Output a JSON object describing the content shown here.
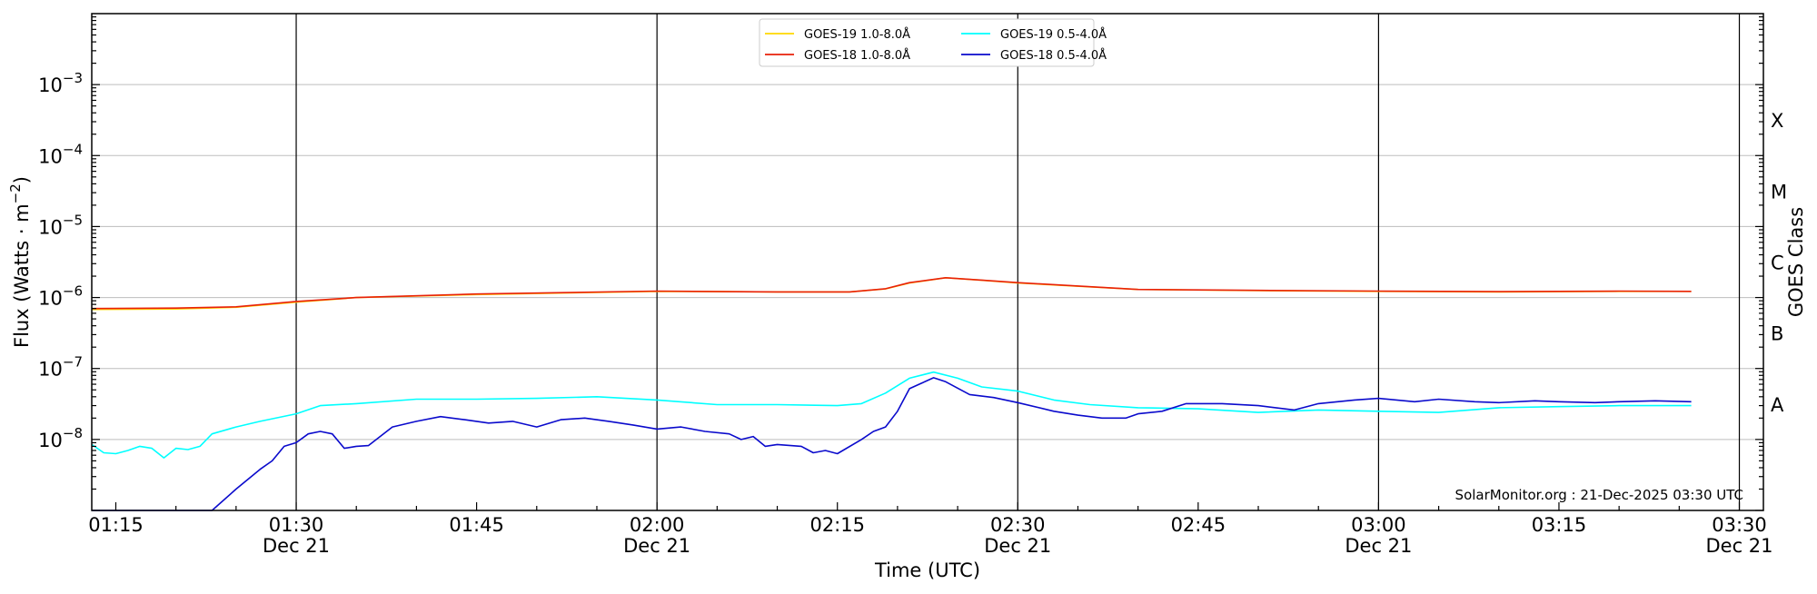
{
  "chart_data": {
    "type": "line",
    "xlabel": "Time (UTC)",
    "ylabel_base": "Flux (Watts · m",
    "ylabel_exp": "−2",
    "ylabel_close": ")",
    "y2label": "GOES Class",
    "yscale": "log",
    "ylim": [
      1e-09,
      0.01
    ],
    "xlim": [
      "2025-12-21T01:13",
      "2025-12-21T03:32"
    ],
    "grid": true,
    "legend_position": "top-center",
    "credit": "SolarMonitor.org : 21-Dec-2025 03:30 UTC",
    "y_ticks": [
      {
        "value": 0.001,
        "base": "10",
        "exp": "−3"
      },
      {
        "value": 0.0001,
        "base": "10",
        "exp": "−4"
      },
      {
        "value": 1e-05,
        "base": "10",
        "exp": "−5"
      },
      {
        "value": 1e-06,
        "base": "10",
        "exp": "−6"
      },
      {
        "value": 1e-07,
        "base": "10",
        "exp": "−7"
      },
      {
        "value": 1e-08,
        "base": "10",
        "exp": "−8"
      }
    ],
    "class_labels": [
      {
        "label": "X",
        "value": 0.000316
      },
      {
        "label": "M",
        "value": 3.16e-05
      },
      {
        "label": "C",
        "value": 3.16e-06
      },
      {
        "label": "B",
        "value": 3.16e-07
      },
      {
        "label": "A",
        "value": 3.16e-08
      }
    ],
    "x_ticks": [
      {
        "time": "01:15",
        "line1": "01:15",
        "line2": ""
      },
      {
        "time": "01:30",
        "line1": "01:30",
        "line2": "Dec 21"
      },
      {
        "time": "01:45",
        "line1": "01:45",
        "line2": ""
      },
      {
        "time": "02:00",
        "line1": "02:00",
        "line2": "Dec 21"
      },
      {
        "time": "02:15",
        "line1": "02:15",
        "line2": ""
      },
      {
        "time": "02:30",
        "line1": "02:30",
        "line2": "Dec 21"
      },
      {
        "time": "02:45",
        "line1": "02:45",
        "line2": ""
      },
      {
        "time": "03:00",
        "line1": "03:00",
        "line2": "Dec 21"
      },
      {
        "time": "03:15",
        "line1": "03:15",
        "line2": ""
      },
      {
        "time": "03:30",
        "line1": "03:30",
        "line2": "Dec 21"
      }
    ],
    "vlines": [
      "01:30",
      "02:00",
      "02:30",
      "03:00",
      "03:30"
    ],
    "series": [
      {
        "name": "GOES-19 1.0-8.0Å",
        "color": "#FFD700",
        "points": [
          [
            "01:13",
            6.8e-07
          ],
          [
            "01:20",
            6.9e-07
          ],
          [
            "01:25",
            7.3e-07
          ],
          [
            "01:30",
            8.6e-07
          ],
          [
            "01:35",
            1e-06
          ],
          [
            "01:45",
            1.1e-06
          ],
          [
            "02:00",
            1.22e-06
          ],
          [
            "02:10",
            1.2e-06
          ],
          [
            "02:16",
            1.2e-06
          ],
          [
            "02:19",
            1.32e-06
          ],
          [
            "02:21",
            1.6e-06
          ],
          [
            "02:24",
            1.9e-06
          ],
          [
            "02:27",
            1.75e-06
          ],
          [
            "02:30",
            1.6e-06
          ],
          [
            "02:40",
            1.3e-06
          ],
          [
            "02:50",
            1.25e-06
          ],
          [
            "03:00",
            1.22e-06
          ],
          [
            "03:10",
            1.2e-06
          ],
          [
            "03:20",
            1.22e-06
          ],
          [
            "03:26",
            1.22e-06
          ]
        ]
      },
      {
        "name": "GOES-18 1.0-8.0Å",
        "color": "#E8210A",
        "points": [
          [
            "01:13",
            7e-07
          ],
          [
            "01:20",
            7.1e-07
          ],
          [
            "01:25",
            7.4e-07
          ],
          [
            "01:30",
            8.8e-07
          ],
          [
            "01:35",
            1e-06
          ],
          [
            "01:45",
            1.12e-06
          ],
          [
            "02:00",
            1.23e-06
          ],
          [
            "02:10",
            1.2e-06
          ],
          [
            "02:16",
            1.2e-06
          ],
          [
            "02:19",
            1.33e-06
          ],
          [
            "02:21",
            1.62e-06
          ],
          [
            "02:24",
            1.9e-06
          ],
          [
            "02:27",
            1.76e-06
          ],
          [
            "02:30",
            1.62e-06
          ],
          [
            "02:40",
            1.3e-06
          ],
          [
            "02:50",
            1.26e-06
          ],
          [
            "03:00",
            1.23e-06
          ],
          [
            "03:10",
            1.21e-06
          ],
          [
            "03:20",
            1.23e-06
          ],
          [
            "03:26",
            1.22e-06
          ]
        ]
      },
      {
        "name": "GOES-19 0.5-4.0Å",
        "color": "#00FFFF",
        "points": [
          [
            "01:13",
            8.5e-09
          ],
          [
            "01:14",
            6.5e-09
          ],
          [
            "01:15",
            6.3e-09
          ],
          [
            "01:16",
            7e-09
          ],
          [
            "01:17",
            8e-09
          ],
          [
            "01:18",
            7.5e-09
          ],
          [
            "01:19",
            5.5e-09
          ],
          [
            "01:20",
            7.5e-09
          ],
          [
            "01:21",
            7.2e-09
          ],
          [
            "01:22",
            8e-09
          ],
          [
            "01:23",
            1.2e-08
          ],
          [
            "01:25",
            1.5e-08
          ],
          [
            "01:27",
            1.8e-08
          ],
          [
            "01:30",
            2.3e-08
          ],
          [
            "01:32",
            3e-08
          ],
          [
            "01:35",
            3.2e-08
          ],
          [
            "01:40",
            3.7e-08
          ],
          [
            "01:45",
            3.7e-08
          ],
          [
            "01:50",
            3.8e-08
          ],
          [
            "01:55",
            4e-08
          ],
          [
            "02:00",
            3.6e-08
          ],
          [
            "02:05",
            3.1e-08
          ],
          [
            "02:10",
            3.1e-08
          ],
          [
            "02:15",
            3e-08
          ],
          [
            "02:17",
            3.2e-08
          ],
          [
            "02:19",
            4.5e-08
          ],
          [
            "02:21",
            7.3e-08
          ],
          [
            "02:23",
            8.9e-08
          ],
          [
            "02:25",
            7.3e-08
          ],
          [
            "02:27",
            5.5e-08
          ],
          [
            "02:30",
            4.8e-08
          ],
          [
            "02:33",
            3.6e-08
          ],
          [
            "02:36",
            3.1e-08
          ],
          [
            "02:40",
            2.8e-08
          ],
          [
            "02:45",
            2.7e-08
          ],
          [
            "02:50",
            2.4e-08
          ],
          [
            "02:55",
            2.6e-08
          ],
          [
            "03:00",
            2.5e-08
          ],
          [
            "03:05",
            2.4e-08
          ],
          [
            "03:10",
            2.8e-08
          ],
          [
            "03:15",
            2.9e-08
          ],
          [
            "03:20",
            3e-08
          ],
          [
            "03:26",
            3e-08
          ]
        ]
      },
      {
        "name": "GOES-18 0.5-4.0Å",
        "color": "#0A0ACC",
        "points": [
          [
            "01:13",
            1e-09
          ],
          [
            "01:23",
            1e-09
          ],
          [
            "01:25",
            2e-09
          ],
          [
            "01:27",
            3.8e-09
          ],
          [
            "01:28",
            5e-09
          ],
          [
            "01:29",
            8e-09
          ],
          [
            "01:30",
            9e-09
          ],
          [
            "01:31",
            1.2e-08
          ],
          [
            "01:32",
            1.3e-08
          ],
          [
            "01:33",
            1.2e-08
          ],
          [
            "01:34",
            7.5e-09
          ],
          [
            "01:35",
            8e-09
          ],
          [
            "01:36",
            8.2e-09
          ],
          [
            "01:38",
            1.5e-08
          ],
          [
            "01:40",
            1.8e-08
          ],
          [
            "01:42",
            2.1e-08
          ],
          [
            "01:44",
            1.9e-08
          ],
          [
            "01:46",
            1.7e-08
          ],
          [
            "01:48",
            1.8e-08
          ],
          [
            "01:50",
            1.5e-08
          ],
          [
            "01:52",
            1.9e-08
          ],
          [
            "01:54",
            2e-08
          ],
          [
            "01:56",
            1.8e-08
          ],
          [
            "01:58",
            1.6e-08
          ],
          [
            "02:00",
            1.4e-08
          ],
          [
            "02:02",
            1.5e-08
          ],
          [
            "02:04",
            1.3e-08
          ],
          [
            "02:06",
            1.2e-08
          ],
          [
            "02:07",
            1e-08
          ],
          [
            "02:08",
            1.1e-08
          ],
          [
            "02:09",
            8e-09
          ],
          [
            "02:10",
            8.5e-09
          ],
          [
            "02:12",
            8e-09
          ],
          [
            "02:13",
            6.5e-09
          ],
          [
            "02:14",
            7e-09
          ],
          [
            "02:15",
            6.3e-09
          ],
          [
            "02:17",
            1e-08
          ],
          [
            "02:18",
            1.3e-08
          ],
          [
            "02:19",
            1.5e-08
          ],
          [
            "02:20",
            2.5e-08
          ],
          [
            "02:21",
            5.2e-08
          ],
          [
            "02:22",
            6.2e-08
          ],
          [
            "02:23",
            7.4e-08
          ],
          [
            "02:24",
            6.5e-08
          ],
          [
            "02:26",
            4.3e-08
          ],
          [
            "02:28",
            3.9e-08
          ],
          [
            "02:30",
            3.3e-08
          ],
          [
            "02:33",
            2.5e-08
          ],
          [
            "02:35",
            2.2e-08
          ],
          [
            "02:37",
            2e-08
          ],
          [
            "02:39",
            2e-08
          ],
          [
            "02:40",
            2.3e-08
          ],
          [
            "02:42",
            2.5e-08
          ],
          [
            "02:44",
            3.2e-08
          ],
          [
            "02:47",
            3.2e-08
          ],
          [
            "02:50",
            3e-08
          ],
          [
            "02:53",
            2.6e-08
          ],
          [
            "02:55",
            3.2e-08
          ],
          [
            "02:58",
            3.6e-08
          ],
          [
            "03:00",
            3.8e-08
          ],
          [
            "03:03",
            3.4e-08
          ],
          [
            "03:05",
            3.7e-08
          ],
          [
            "03:08",
            3.4e-08
          ],
          [
            "03:10",
            3.3e-08
          ],
          [
            "03:13",
            3.5e-08
          ],
          [
            "03:15",
            3.4e-08
          ],
          [
            "03:18",
            3.3e-08
          ],
          [
            "03:20",
            3.4e-08
          ],
          [
            "03:23",
            3.5e-08
          ],
          [
            "03:26",
            3.4e-08
          ]
        ]
      }
    ]
  }
}
